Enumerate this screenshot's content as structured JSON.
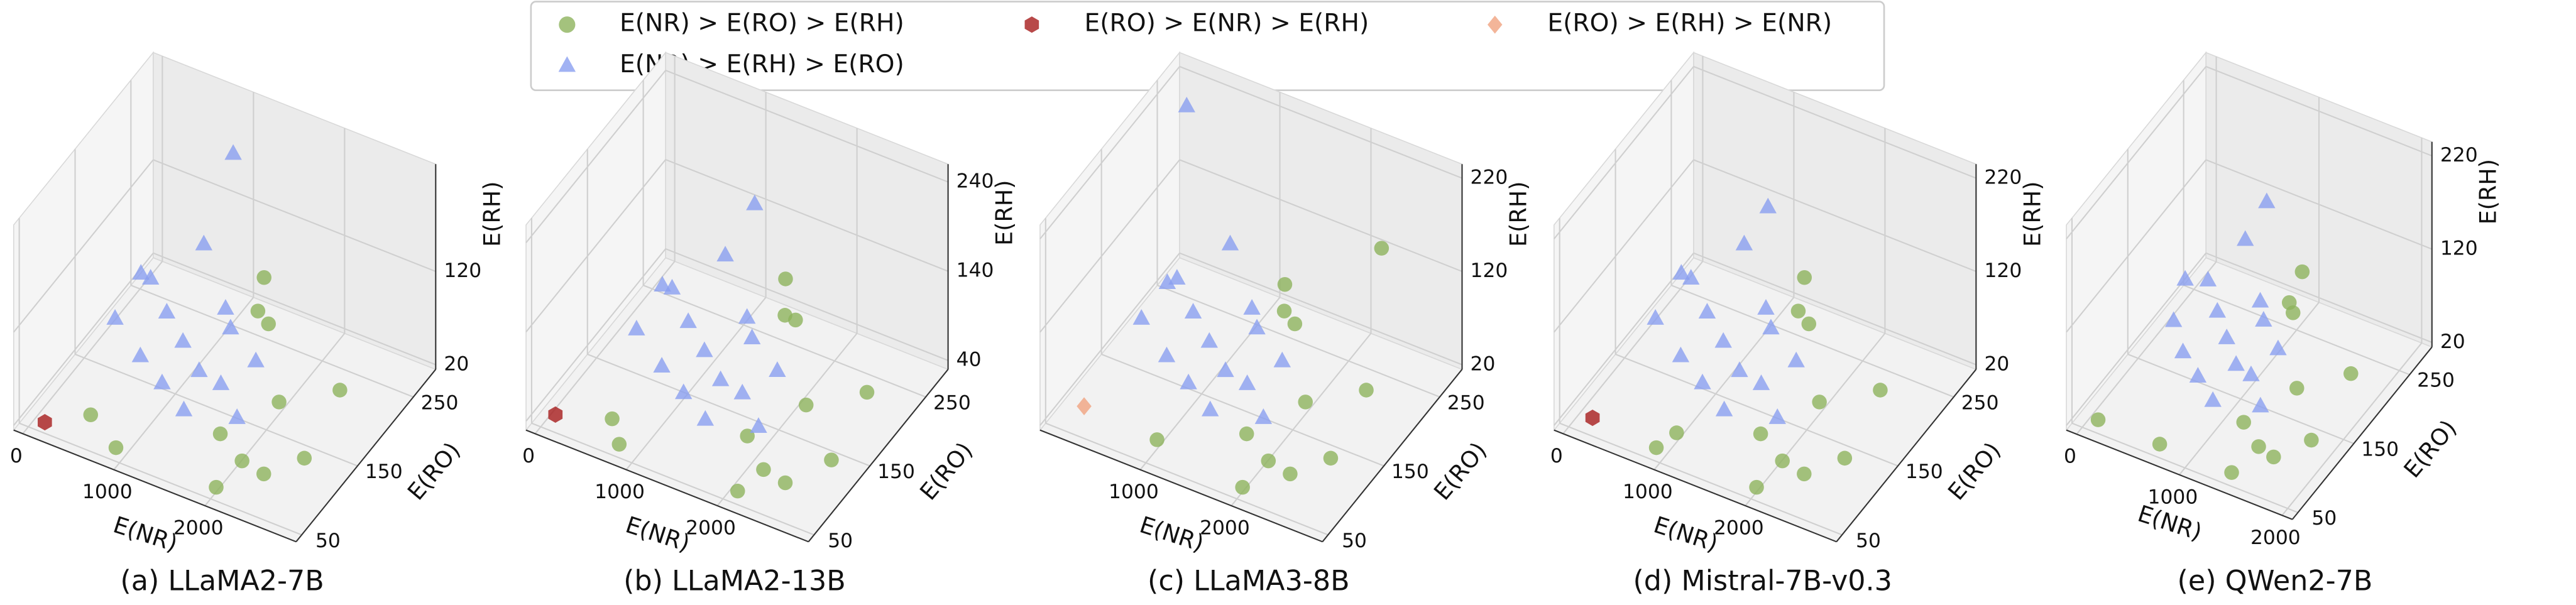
{
  "chart_data": [
    {
      "type": "scatter3d",
      "title": "(a) LLaMA2-7B",
      "xlabel": "E(NR)",
      "ylabel": "E(RO)",
      "zlabel": "E(RH)",
      "xlim": [
        -100,
        3000
      ],
      "ylim": [
        40,
        290
      ],
      "zlim": [
        15,
        235
      ],
      "xticks": [
        0,
        1000,
        2000
      ],
      "yticks": [
        50,
        150,
        250
      ],
      "zticks": [
        20,
        120
      ],
      "series": [
        {
          "name": "E(NR) > E(RO) > E(RH)",
          "color": "#8db35c",
          "marker": "o",
          "x": [
            1800,
            2100,
            2400,
            2200,
            2600,
            900,
            500,
            1600,
            2000,
            1300,
            2500,
            1900
          ],
          "y": [
            100,
            90,
            80,
            140,
            120,
            60,
            80,
            200,
            60,
            260,
            200,
            170
          ],
          "z": [
            40,
            30,
            35,
            60,
            30,
            20,
            25,
            90,
            20,
            70,
            40,
            110
          ]
        },
        {
          "name": "E(NR) > E(RH) > E(RO)",
          "color": "#8a9ff0",
          "marker": "^",
          "x": [
            300,
            600,
            900,
            1200,
            1500,
            1800,
            400,
            800,
            1100,
            1400,
            700,
            1000,
            500,
            1300,
            1700,
            900
          ],
          "y": [
            220,
            200,
            180,
            160,
            150,
            130,
            140,
            120,
            110,
            100,
            250,
            240,
            170,
            200,
            180,
            270
          ],
          "z": [
            60,
            50,
            45,
            40,
            45,
            35,
            80,
            70,
            60,
            50,
            90,
            40,
            110,
            60,
            55,
            180
          ]
        },
        {
          "name": "E(RO) > E(NR) > E(RH)",
          "color": "#a61c1c",
          "marker": "h",
          "x": [
            150
          ],
          "y": [
            55
          ],
          "z": [
            22
          ]
        }
      ]
    },
    {
      "type": "scatter3d",
      "title": "(b) LLaMA2-13B",
      "xlabel": "E(NR)",
      "ylabel": "E(RO)",
      "zlabel": "E(RH)",
      "xlim": [
        -100,
        3000
      ],
      "ylim": [
        40,
        290
      ],
      "zlim": [
        30,
        260
      ],
      "xticks": [
        0,
        1000,
        2000
      ],
      "yticks": [
        50,
        150,
        250
      ],
      "zticks": [
        40,
        140,
        240
      ],
      "series": [
        {
          "name": "E(NR) > E(RO) > E(RH)",
          "color": "#8db35c",
          "marker": "o",
          "x": [
            1900,
            2200,
            2500,
            2300,
            2700,
            800,
            600,
            1700,
            2100,
            1400,
            2600,
            2000
          ],
          "y": [
            110,
            90,
            80,
            150,
            130,
            60,
            80,
            210,
            60,
            260,
            210,
            180
          ],
          "z": [
            50,
            40,
            45,
            70,
            40,
            35,
            40,
            100,
            35,
            90,
            50,
            130
          ]
        },
        {
          "name": "E(NR) > E(RH) > E(RO)",
          "color": "#8a9ff0",
          "marker": "^",
          "x": [
            400,
            700,
            1000,
            1300,
            1600,
            1900,
            500,
            900,
            1200,
            1500,
            800,
            1100,
            600,
            1400,
            1800,
            1000
          ],
          "y": [
            220,
            200,
            180,
            160,
            150,
            130,
            140,
            120,
            110,
            100,
            250,
            240,
            170,
            200,
            180,
            270
          ],
          "z": [
            70,
            60,
            55,
            50,
            55,
            45,
            90,
            80,
            70,
            60,
            100,
            50,
            120,
            70,
            65,
            150
          ]
        },
        {
          "name": "E(RO) > E(NR) > E(RH)",
          "color": "#a61c1c",
          "marker": "h",
          "x": [
            100
          ],
          "y": [
            60
          ],
          "z": [
            40
          ]
        }
      ]
    },
    {
      "type": "scatter3d",
      "title": "(c) LLaMA3-8B",
      "xlabel": "E(NR)",
      "ylabel": "E(RO)",
      "zlabel": "E(RH)",
      "xlim": [
        -100,
        3000
      ],
      "ylim": [
        40,
        290
      ],
      "zlim": [
        15,
        235
      ],
      "xticks": [
        1000,
        2000
      ],
      "yticks": [
        50,
        150,
        250
      ],
      "zticks": [
        20,
        120,
        220
      ],
      "series": [
        {
          "name": "E(NR) > E(RO) > E(RH)",
          "color": "#8db35c",
          "marker": "o",
          "x": [
            1800,
            2100,
            2400,
            2200,
            2600,
            1000,
            1600,
            2000,
            1300,
            2500,
            1900,
            2300
          ],
          "y": [
            100,
            90,
            80,
            140,
            120,
            70,
            200,
            60,
            250,
            200,
            170,
            260
          ],
          "z": [
            40,
            30,
            35,
            60,
            30,
            25,
            90,
            20,
            70,
            40,
            110,
            140
          ]
        },
        {
          "name": "E(NR) > E(RH) > E(RO)",
          "color": "#8a9ff0",
          "marker": "^",
          "x": [
            300,
            600,
            900,
            1200,
            1500,
            1800,
            400,
            800,
            1100,
            1400,
            700,
            1000,
            500,
            1300,
            1700,
            100
          ],
          "y": [
            220,
            200,
            180,
            160,
            150,
            130,
            140,
            120,
            110,
            100,
            250,
            240,
            170,
            200,
            180,
            270
          ],
          "z": [
            60,
            50,
            45,
            40,
            45,
            35,
            80,
            70,
            60,
            50,
            90,
            40,
            100,
            60,
            55,
            200
          ]
        },
        {
          "name": "E(RO) > E(RH) > E(NR)",
          "color": "#f0a37f",
          "marker": "D",
          "x": [
            200
          ],
          "y": [
            70
          ],
          "z": [
            30
          ]
        }
      ]
    },
    {
      "type": "scatter3d",
      "title": "(d) Mistral-7B-v0.3",
      "xlabel": "E(NR)",
      "ylabel": "E(RO)",
      "zlabel": "E(RH)",
      "xlim": [
        -100,
        3000
      ],
      "ylim": [
        40,
        290
      ],
      "zlim": [
        15,
        235
      ],
      "xticks": [
        0,
        1000,
        2000
      ],
      "yticks": [
        50,
        150,
        250
      ],
      "zticks": [
        20,
        120,
        220
      ],
      "series": [
        {
          "name": "E(NR) > E(RO) > E(RH)",
          "color": "#8db35c",
          "marker": "o",
          "x": [
            1800,
            2100,
            2400,
            2200,
            2600,
            900,
            1600,
            2000,
            1300,
            2500,
            1900,
            1000
          ],
          "y": [
            100,
            90,
            80,
            140,
            120,
            60,
            200,
            60,
            260,
            200,
            170,
            80
          ],
          "z": [
            40,
            30,
            35,
            60,
            30,
            20,
            90,
            20,
            70,
            40,
            110,
            25
          ]
        },
        {
          "name": "E(NR) > E(RH) > E(RO)",
          "color": "#8a9ff0",
          "marker": "^",
          "x": [
            300,
            600,
            900,
            1200,
            1500,
            1800,
            400,
            800,
            1100,
            1400,
            700,
            1000,
            500,
            1300,
            1700,
            900
          ],
          "y": [
            220,
            200,
            180,
            160,
            150,
            130,
            140,
            120,
            110,
            100,
            250,
            240,
            170,
            200,
            180,
            260
          ],
          "z": [
            60,
            50,
            45,
            40,
            45,
            35,
            80,
            70,
            60,
            50,
            90,
            40,
            110,
            60,
            55,
            130
          ]
        },
        {
          "name": "E(RO) > E(NR) > E(RH)",
          "color": "#a61c1c",
          "marker": "h",
          "x": [
            200
          ],
          "y": [
            60
          ],
          "z": [
            25
          ]
        }
      ]
    },
    {
      "type": "scatter3d",
      "title": "(e) QWen2-7B",
      "xlabel": "E(NR)",
      "ylabel": "E(RO)",
      "zlabel": "E(RH)",
      "xlim": [
        -100,
        2100
      ],
      "ylim": [
        40,
        290
      ],
      "zlim": [
        15,
        235
      ],
      "xticks": [
        0,
        1000,
        2000
      ],
      "yticks": [
        50,
        150,
        250
      ],
      "zticks": [
        20,
        120,
        220
      ],
      "series": [
        {
          "name": "E(NR) > E(RO) > E(RH)",
          "color": "#8db35c",
          "marker": "o",
          "x": [
            1300,
            1500,
            1700,
            1600,
            1850,
            700,
            1200,
            1400,
            1000,
            1800,
            1400,
            100
          ],
          "y": [
            100,
            90,
            80,
            140,
            120,
            60,
            200,
            60,
            260,
            200,
            170,
            60
          ],
          "z": [
            40,
            30,
            35,
            60,
            30,
            20,
            90,
            20,
            70,
            40,
            110,
            20
          ]
        },
        {
          "name": "E(NR) > E(RH) > E(RO)",
          "color": "#8a9ff0",
          "marker": "^",
          "x": [
            300,
            500,
            700,
            900,
            1100,
            1300,
            400,
            600,
            800,
            1000,
            500,
            700,
            350,
            950,
            1200,
            600
          ],
          "y": [
            220,
            200,
            180,
            160,
            150,
            130,
            140,
            120,
            110,
            100,
            250,
            240,
            170,
            200,
            180,
            270
          ],
          "z": [
            60,
            50,
            45,
            40,
            45,
            35,
            80,
            70,
            60,
            50,
            90,
            40,
            100,
            60,
            55,
            120
          ]
        }
      ]
    }
  ]
}
